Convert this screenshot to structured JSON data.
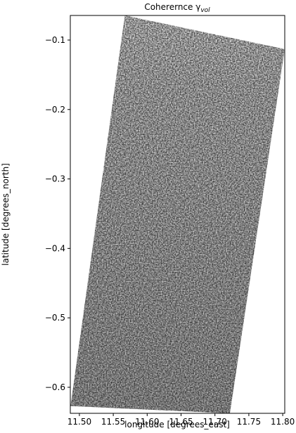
{
  "chart_data": {
    "type": "image",
    "title": {
      "text": "Coherernce γ",
      "subscript": "vol"
    },
    "x_label": "longitude [degrees_east]",
    "y_label": "latitude [degrees_north]",
    "xlim": [
      11.4866,
      11.803
    ],
    "ylim": [
      -0.6375,
      -0.0646
    ],
    "xticks": [
      {
        "value": 11.5,
        "label": "11.50"
      },
      {
        "value": 11.55,
        "label": "11.55"
      },
      {
        "value": 11.6,
        "label": "11.60"
      },
      {
        "value": 11.65,
        "label": "11.65"
      },
      {
        "value": 11.7,
        "label": "11.70"
      },
      {
        "value": 11.75,
        "label": "11.75"
      },
      {
        "value": 11.8,
        "label": "11.80"
      }
    ],
    "yticks": [
      {
        "value": -0.1,
        "label": "−0.1"
      },
      {
        "value": -0.2,
        "label": "−0.2"
      },
      {
        "value": -0.3,
        "label": "−0.3"
      },
      {
        "value": -0.4,
        "label": "−0.4"
      },
      {
        "value": -0.5,
        "label": "−0.5"
      },
      {
        "value": -0.6,
        "label": "−0.6"
      }
    ],
    "footprint": {
      "lon": [
        11.567,
        11.803,
        11.722,
        11.487
      ],
      "lat": [
        -0.0646,
        -0.113,
        -0.6375,
        -0.627
      ]
    },
    "colormap": "gray"
  }
}
